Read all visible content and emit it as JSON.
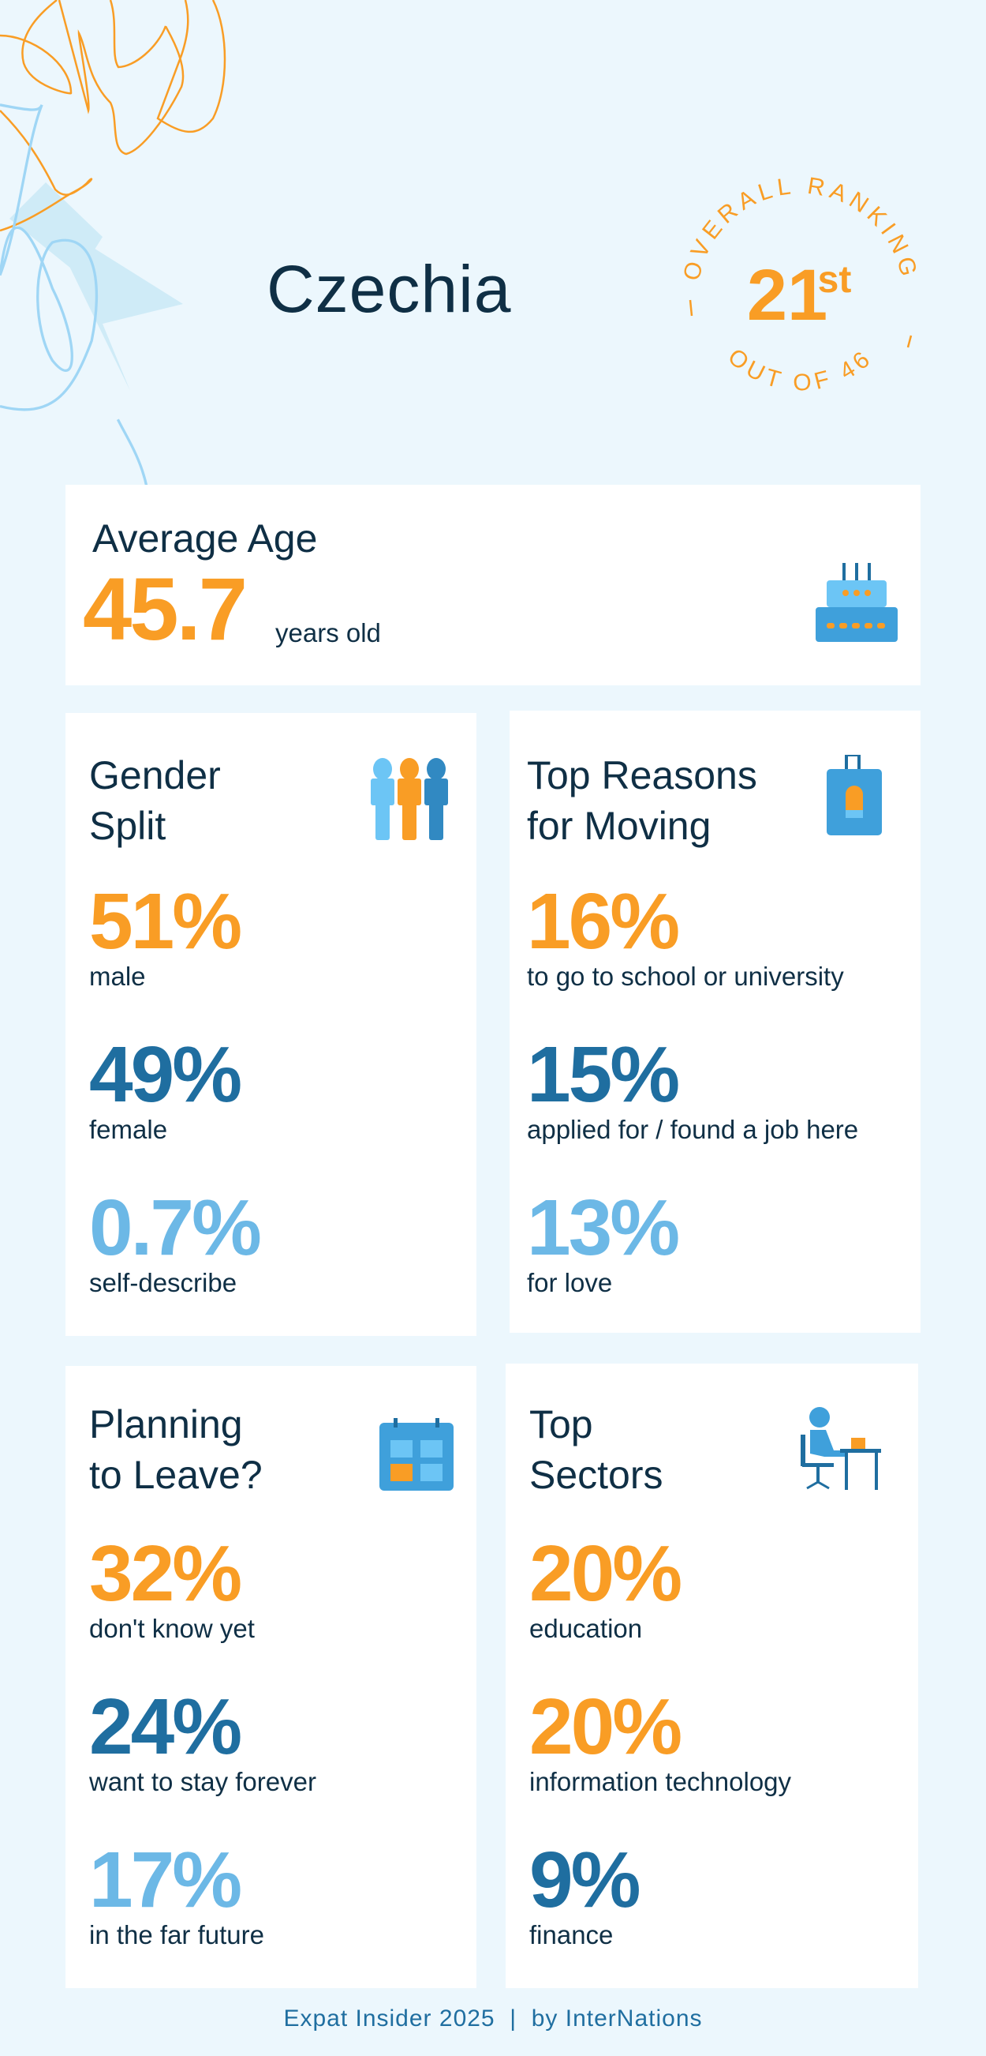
{
  "header": {
    "country": "Czechia"
  },
  "ranking": {
    "label": "OVERALL RANKING",
    "rank": "21",
    "suffix": "st",
    "out_of": "OUT OF 46"
  },
  "average_age": {
    "title": "Average Age",
    "value": "45.7",
    "unit": "years old",
    "icon": "birthday-cake-icon"
  },
  "gender_split": {
    "title_line1": "Gender",
    "title_line2": "Split",
    "icon": "people-icon",
    "stats": [
      {
        "value": "51%",
        "label": "male"
      },
      {
        "value": "49%",
        "label": "female"
      },
      {
        "value": "0.7%",
        "label": "self-describe"
      }
    ]
  },
  "top_reasons": {
    "title_line1": "Top Reasons",
    "title_line2": "for Moving",
    "icon": "luggage-icon",
    "stats": [
      {
        "value": "16%",
        "label": "to go to school or university"
      },
      {
        "value": "15%",
        "label": "applied for / found a job here"
      },
      {
        "value": "13%",
        "label": "for love"
      }
    ]
  },
  "planning_to_leave": {
    "title_line1": "Planning",
    "title_line2": "to Leave?",
    "icon": "calendar-icon",
    "stats": [
      {
        "value": "32%",
        "label": "don't know yet"
      },
      {
        "value": "24%",
        "label": "want to stay forever"
      },
      {
        "value": "17%",
        "label": "in the far future"
      }
    ]
  },
  "top_sectors": {
    "title_line1": "Top",
    "title_line2": "Sectors",
    "icon": "person-at-desk-icon",
    "stats": [
      {
        "value": "20%",
        "label": "education"
      },
      {
        "value": "20%",
        "label": "information technology"
      },
      {
        "value": "9%",
        "label": "finance"
      }
    ]
  },
  "footer": {
    "text": "Expat Insider 2025  |  by InterNations"
  },
  "colors": {
    "orange": "#F99D25",
    "dark_blue": "#1F6EA0",
    "light_blue": "#6CB8E6",
    "navy": "#0F2F45",
    "background": "#ECF7FD"
  }
}
